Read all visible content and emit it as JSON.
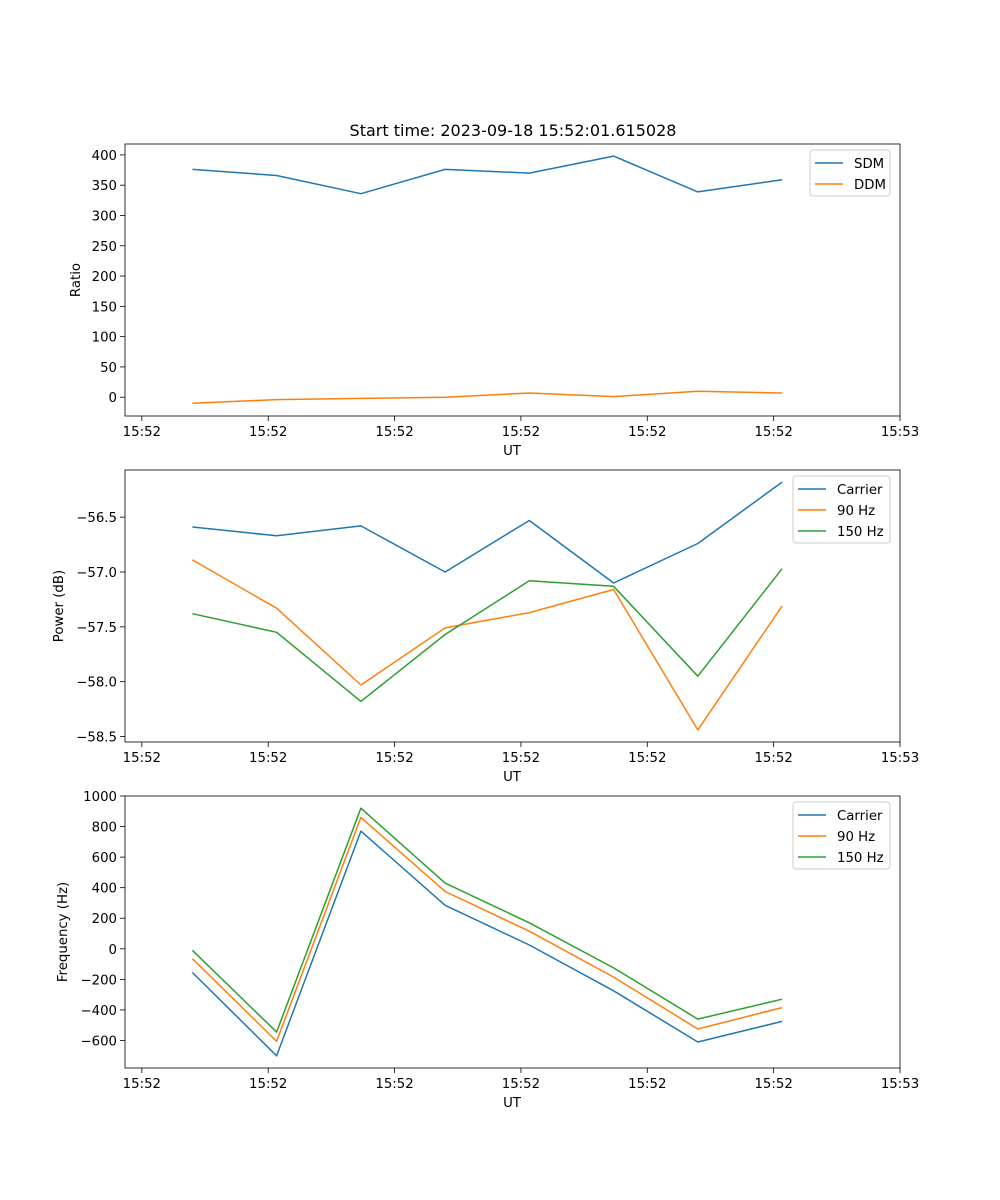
{
  "figure": {
    "title": "Start time: 2023-09-18 15:52:01.615028",
    "colors": {
      "blue": "#1f77b4",
      "orange": "#ff7f0e",
      "green": "#2ca02c"
    }
  },
  "chart_data": [
    {
      "type": "line",
      "title": "Start time: 2023-09-18 15:52:01.615028",
      "xlabel": "UT",
      "ylabel": "Ratio",
      "x": [
        1,
        2,
        3,
        4,
        5,
        6,
        7,
        8
      ],
      "xlim": [
        0.2,
        9.4
      ],
      "xticks": [
        0.4,
        1.9,
        3.4,
        4.9,
        6.4,
        7.9,
        9.4
      ],
      "xtick_labels": [
        "15:52",
        "15:52",
        "15:52",
        "15:52",
        "15:52",
        "15:52",
        "15:53"
      ],
      "ylim": [
        -31,
        418
      ],
      "yticks": [
        0,
        50,
        100,
        150,
        200,
        250,
        300,
        350,
        400
      ],
      "ytick_labels": [
        "0",
        "50",
        "100",
        "150",
        "200",
        "250",
        "300",
        "350",
        "400"
      ],
      "legend": "upper-right",
      "series": [
        {
          "name": "SDM",
          "color": "#1f77b4",
          "values": [
            376,
            366,
            336,
            376,
            370,
            398,
            339,
            359
          ]
        },
        {
          "name": "DDM",
          "color": "#ff7f0e",
          "values": [
            -10,
            -4,
            -2,
            0,
            7,
            1,
            10,
            7
          ]
        }
      ]
    },
    {
      "type": "line",
      "xlabel": "UT",
      "ylabel": "Power (dB)",
      "x": [
        1,
        2,
        3,
        4,
        5,
        6,
        7,
        8
      ],
      "xlim": [
        0.2,
        9.4
      ],
      "xticks": [
        0.4,
        1.9,
        3.4,
        4.9,
        6.4,
        7.9,
        9.4
      ],
      "xtick_labels": [
        "15:52",
        "15:52",
        "15:52",
        "15:52",
        "15:52",
        "15:52",
        "15:53"
      ],
      "ylim": [
        -58.55,
        -56.07
      ],
      "yticks": [
        -58.5,
        -58.0,
        -57.5,
        -57.0,
        -56.5
      ],
      "ytick_labels": [
        "−58.5",
        "−58.0",
        "−57.5",
        "−57.0",
        "−56.5"
      ],
      "legend": "upper-right",
      "series": [
        {
          "name": "Carrier",
          "color": "#1f77b4",
          "values": [
            -56.59,
            -56.67,
            -56.58,
            -57.0,
            -56.53,
            -57.1,
            -56.74,
            -56.18
          ]
        },
        {
          "name": "90 Hz",
          "color": "#ff7f0e",
          "values": [
            -56.89,
            -57.33,
            -58.03,
            -57.51,
            -57.37,
            -57.16,
            -58.44,
            -57.31
          ]
        },
        {
          "name": "150 Hz",
          "color": "#2ca02c",
          "values": [
            -57.38,
            -57.55,
            -58.18,
            -57.57,
            -57.08,
            -57.13,
            -57.95,
            -56.97
          ]
        }
      ]
    },
    {
      "type": "line",
      "xlabel": "UT",
      "ylabel": "Frequency (Hz)",
      "x": [
        1,
        2,
        3,
        4,
        5,
        6,
        7,
        8
      ],
      "xlim": [
        0.2,
        9.4
      ],
      "xticks": [
        0.4,
        1.9,
        3.4,
        4.9,
        6.4,
        7.9,
        9.4
      ],
      "xtick_labels": [
        "15:52",
        "15:52",
        "15:52",
        "15:52",
        "15:52",
        "15:52",
        "15:53"
      ],
      "ylim": [
        -780,
        1000
      ],
      "yticks": [
        -600,
        -400,
        -200,
        0,
        200,
        400,
        600,
        800,
        1000
      ],
      "ytick_labels": [
        "−600",
        "−400",
        "−200",
        "0",
        "200",
        "400",
        "600",
        "800",
        "1000"
      ],
      "legend": "upper-right",
      "series": [
        {
          "name": "Carrier",
          "color": "#1f77b4",
          "values": [
            -155,
            -700,
            770,
            285,
            25,
            -275,
            -610,
            -475
          ]
        },
        {
          "name": "90 Hz",
          "color": "#ff7f0e",
          "values": [
            -65,
            -605,
            860,
            375,
            115,
            -185,
            -525,
            -385
          ]
        },
        {
          "name": "150 Hz",
          "color": "#2ca02c",
          "values": [
            -10,
            -545,
            920,
            430,
            170,
            -125,
            -460,
            -330
          ]
        }
      ]
    }
  ]
}
